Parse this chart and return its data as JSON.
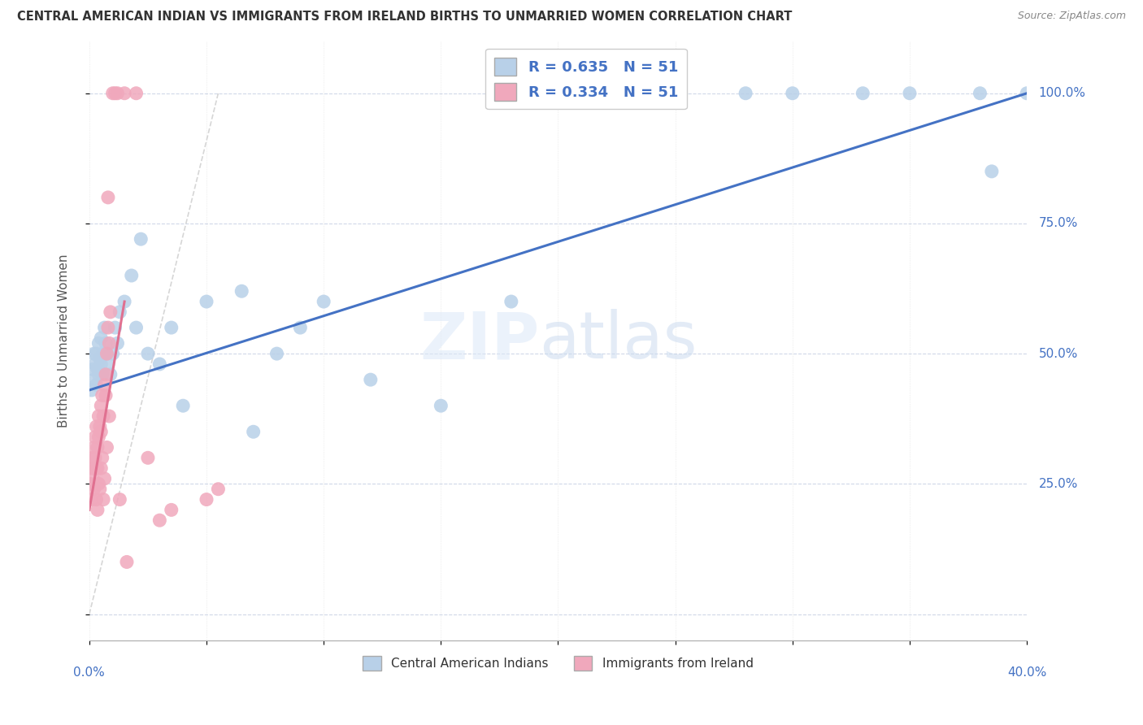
{
  "title": "CENTRAL AMERICAN INDIAN VS IMMIGRANTS FROM IRELAND BIRTHS TO UNMARRIED WOMEN CORRELATION CHART",
  "source": "Source: ZipAtlas.com",
  "ylabel": "Births to Unmarried Women",
  "ytick_values": [
    0.0,
    25.0,
    50.0,
    75.0,
    100.0
  ],
  "xlim": [
    0.0,
    40.0
  ],
  "ylim": [
    -5.0,
    110.0
  ],
  "r_blue": 0.635,
  "n_blue": 51,
  "r_pink": 0.334,
  "n_pink": 51,
  "legend_label_blue": "Central American Indians",
  "legend_label_pink": "Immigrants from Ireland",
  "color_blue": "#b8d0e8",
  "color_pink": "#f0a8bc",
  "color_blue_line": "#4472c4",
  "color_pink_line": "#e07090",
  "color_ref_line": "#cccccc",
  "blue_x": [
    0.1,
    0.15,
    0.2,
    0.2,
    0.25,
    0.3,
    0.3,
    0.35,
    0.4,
    0.4,
    0.45,
    0.5,
    0.5,
    0.55,
    0.6,
    0.65,
    0.7,
    0.75,
    0.8,
    0.9,
    1.0,
    1.1,
    1.2,
    1.3,
    1.5,
    1.8,
    2.0,
    2.5,
    3.0,
    3.5,
    4.0,
    5.0,
    6.5,
    7.0,
    8.0,
    9.0,
    10.0,
    12.0,
    15.0,
    18.0,
    20.0,
    22.0,
    25.0,
    28.0,
    30.0,
    33.0,
    35.0,
    38.0,
    38.5,
    40.0,
    2.2
  ],
  "blue_y": [
    43.0,
    47.0,
    45.0,
    50.0,
    48.0,
    44.0,
    50.0,
    47.0,
    46.0,
    52.0,
    49.0,
    48.0,
    53.0,
    46.0,
    50.0,
    55.0,
    52.0,
    50.0,
    48.0,
    46.0,
    50.0,
    55.0,
    52.0,
    58.0,
    60.0,
    65.0,
    55.0,
    50.0,
    48.0,
    55.0,
    40.0,
    60.0,
    62.0,
    35.0,
    50.0,
    55.0,
    60.0,
    45.0,
    40.0,
    60.0,
    100.0,
    100.0,
    100.0,
    100.0,
    100.0,
    100.0,
    100.0,
    100.0,
    85.0,
    100.0,
    72.0
  ],
  "pink_x": [
    0.05,
    0.1,
    0.1,
    0.15,
    0.15,
    0.2,
    0.2,
    0.2,
    0.25,
    0.25,
    0.3,
    0.3,
    0.35,
    0.35,
    0.4,
    0.4,
    0.45,
    0.5,
    0.5,
    0.55,
    0.6,
    0.65,
    0.7,
    0.7,
    0.75,
    0.8,
    0.85,
    0.9,
    1.0,
    1.1,
    1.2,
    1.5,
    2.0,
    2.5,
    3.0,
    3.5,
    5.0,
    5.5,
    0.3,
    0.4,
    0.5,
    0.6,
    0.55,
    0.65,
    0.35,
    0.45,
    0.75,
    0.85,
    0.8,
    1.3,
    1.6
  ],
  "pink_y": [
    25.0,
    22.0,
    28.0,
    30.0,
    26.0,
    24.0,
    32.0,
    28.0,
    30.0,
    34.0,
    28.0,
    36.0,
    32.0,
    28.0,
    34.0,
    38.0,
    36.0,
    40.0,
    35.0,
    42.0,
    38.0,
    44.0,
    46.0,
    42.0,
    50.0,
    55.0,
    52.0,
    58.0,
    100.0,
    100.0,
    100.0,
    100.0,
    100.0,
    30.0,
    18.0,
    20.0,
    22.0,
    24.0,
    22.0,
    25.0,
    28.0,
    22.0,
    30.0,
    26.0,
    20.0,
    24.0,
    32.0,
    38.0,
    80.0,
    22.0,
    10.0
  ],
  "blue_reg_x0": 0.0,
  "blue_reg_y0": 43.0,
  "blue_reg_x1": 40.0,
  "blue_reg_y1": 100.0,
  "pink_reg_x0": 0.0,
  "pink_reg_y0": 20.0,
  "pink_reg_x1": 1.5,
  "pink_reg_y1": 60.0,
  "ref_line_x0": 0.0,
  "ref_line_y0": 0.0,
  "ref_line_x1": 5.5,
  "ref_line_y1": 100.0
}
